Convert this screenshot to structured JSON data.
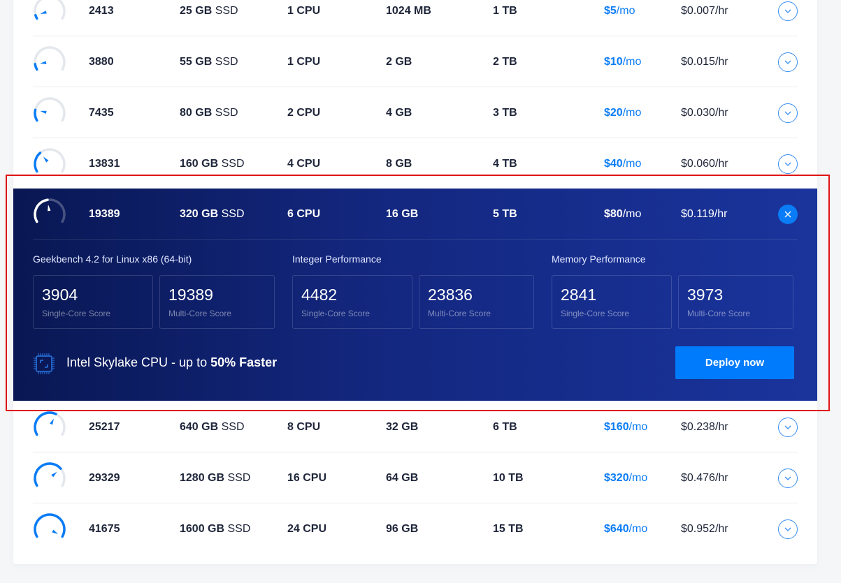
{
  "colors": {
    "accent": "#0a7cf5",
    "deploy": "#007bfc",
    "panel": "#13277f",
    "highlight": "#e01414"
  },
  "plans": [
    {
      "score": "2413",
      "storage_size": "25 GB",
      "storage_type": "SSD",
      "cpu": "1 CPU",
      "ram": "1024 MB",
      "bandwidth": "1 TB",
      "price": "$5",
      "price_unit": "/mo",
      "hourly": "$0.007/hr",
      "expanded": false
    },
    {
      "score": "3880",
      "storage_size": "55 GB",
      "storage_type": "SSD",
      "cpu": "1 CPU",
      "ram": "2 GB",
      "bandwidth": "2 TB",
      "price": "$10",
      "price_unit": "/mo",
      "hourly": "$0.015/hr",
      "expanded": false
    },
    {
      "score": "7435",
      "storage_size": "80 GB",
      "storage_type": "SSD",
      "cpu": "2 CPU",
      "ram": "4 GB",
      "bandwidth": "3 TB",
      "price": "$20",
      "price_unit": "/mo",
      "hourly": "$0.030/hr",
      "expanded": false
    },
    {
      "score": "13831",
      "storage_size": "160 GB",
      "storage_type": "SSD",
      "cpu": "4 CPU",
      "ram": "8 GB",
      "bandwidth": "4 TB",
      "price": "$40",
      "price_unit": "/mo",
      "hourly": "$0.060/hr",
      "expanded": false
    },
    {
      "score": "19389",
      "storage_size": "320 GB",
      "storage_type": "SSD",
      "cpu": "6 CPU",
      "ram": "16 GB",
      "bandwidth": "5 TB",
      "price": "$80",
      "price_unit": "/mo",
      "hourly": "$0.119/hr",
      "expanded": true
    },
    {
      "score": "25217",
      "storage_size": "640 GB",
      "storage_type": "SSD",
      "cpu": "8 CPU",
      "ram": "32 GB",
      "bandwidth": "6 TB",
      "price": "$160",
      "price_unit": "/mo",
      "hourly": "$0.238/hr",
      "expanded": false
    },
    {
      "score": "29329",
      "storage_size": "1280 GB",
      "storage_type": "SSD",
      "cpu": "16 CPU",
      "ram": "64 GB",
      "bandwidth": "10 TB",
      "price": "$320",
      "price_unit": "/mo",
      "hourly": "$0.476/hr",
      "expanded": false
    },
    {
      "score": "41675",
      "storage_size": "1600 GB",
      "storage_type": "SSD",
      "cpu": "24 CPU",
      "ram": "96 GB",
      "bandwidth": "15 TB",
      "price": "$640",
      "price_unit": "/mo",
      "hourly": "$0.952/hr",
      "expanded": false
    }
  ],
  "details": {
    "sections": [
      {
        "title": "Geekbench 4.2 for Linux x86 (64-bit)",
        "scores": [
          {
            "value": "3904",
            "label": "Single-Core Score"
          },
          {
            "value": "19389",
            "label": "Multi-Core Score"
          }
        ]
      },
      {
        "title": "Integer Performance",
        "scores": [
          {
            "value": "4482",
            "label": "Single-Core Score"
          },
          {
            "value": "23836",
            "label": "Multi-Core Score"
          }
        ]
      },
      {
        "title": "Memory Performance",
        "scores": [
          {
            "value": "2841",
            "label": "Single-Core Score"
          },
          {
            "value": "3973",
            "label": "Multi-Core Score"
          }
        ]
      }
    ],
    "promo_prefix": "Intel Skylake CPU - up to ",
    "promo_bold": "50% Faster",
    "deploy_label": "Deploy now",
    "icons": {
      "cpu": "cpu-chip-icon",
      "close": "close-icon",
      "expand": "chevron-down-icon",
      "gauge": "speedometer-gauge-icon"
    }
  }
}
